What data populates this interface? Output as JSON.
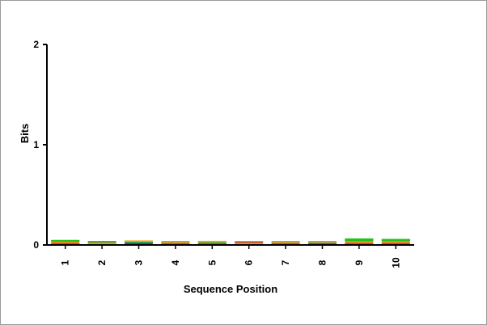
{
  "chart_data": {
    "type": "sequence_logo",
    "ylabel": "Bits",
    "xlabel": "Sequence Position",
    "ylim": [
      0,
      2
    ],
    "y_ticks": [
      "0",
      "1",
      "2"
    ],
    "positions": [
      "1",
      "2",
      "3",
      "4",
      "5",
      "6",
      "7",
      "8",
      "9",
      "10"
    ],
    "colors": {
      "A": "#21c21a",
      "C": "#2a2ad6",
      "G": "#f0a21e",
      "T": "#e81e1e"
    },
    "stacks": [
      {
        "position": "1",
        "letters": [
          {
            "letter": "C",
            "bits": 0.01
          },
          {
            "letter": "T",
            "bits": 0.01
          },
          {
            "letter": "G",
            "bits": 0.012
          },
          {
            "letter": "A",
            "bits": 0.018
          }
        ]
      },
      {
        "position": "2",
        "letters": [
          {
            "letter": "C",
            "bits": 0.006
          },
          {
            "letter": "G",
            "bits": 0.008
          },
          {
            "letter": "A",
            "bits": 0.006
          },
          {
            "letter": "T",
            "bits": 0.006
          }
        ]
      },
      {
        "position": "3",
        "letters": [
          {
            "letter": "T",
            "bits": 0.012
          },
          {
            "letter": "C",
            "bits": 0.008
          },
          {
            "letter": "A",
            "bits": 0.012
          },
          {
            "letter": "G",
            "bits": 0.012
          }
        ]
      },
      {
        "position": "4",
        "letters": [
          {
            "letter": "C",
            "bits": 0.006
          },
          {
            "letter": "T",
            "bits": 0.008
          },
          {
            "letter": "G",
            "bits": 0.008
          },
          {
            "letter": "A",
            "bits": 0.008
          }
        ]
      },
      {
        "position": "5",
        "letters": [
          {
            "letter": "C",
            "bits": 0.008
          },
          {
            "letter": "T",
            "bits": 0.008
          },
          {
            "letter": "A",
            "bits": 0.01
          },
          {
            "letter": "G",
            "bits": 0.012
          }
        ]
      },
      {
        "position": "6",
        "letters": [
          {
            "letter": "C",
            "bits": 0.004
          },
          {
            "letter": "G",
            "bits": 0.006
          },
          {
            "letter": "T",
            "bits": 0.006
          },
          {
            "letter": "A",
            "bits": 0.006
          }
        ]
      },
      {
        "position": "7",
        "letters": [
          {
            "letter": "C",
            "bits": 0.004
          },
          {
            "letter": "T",
            "bits": 0.004
          },
          {
            "letter": "G",
            "bits": 0.006
          },
          {
            "letter": "A",
            "bits": 0.006
          }
        ]
      },
      {
        "position": "8",
        "letters": [
          {
            "letter": "T",
            "bits": 0.004
          },
          {
            "letter": "C",
            "bits": 0.006
          },
          {
            "letter": "G",
            "bits": 0.008
          },
          {
            "letter": "A",
            "bits": 0.008
          }
        ]
      },
      {
        "position": "9",
        "letters": [
          {
            "letter": "C",
            "bits": 0.01
          },
          {
            "letter": "T",
            "bits": 0.012
          },
          {
            "letter": "G",
            "bits": 0.014
          },
          {
            "letter": "A",
            "bits": 0.03
          }
        ]
      },
      {
        "position": "10",
        "letters": [
          {
            "letter": "C",
            "bits": 0.01
          },
          {
            "letter": "T",
            "bits": 0.012
          },
          {
            "letter": "G",
            "bits": 0.014
          },
          {
            "letter": "A",
            "bits": 0.024
          }
        ]
      }
    ]
  }
}
